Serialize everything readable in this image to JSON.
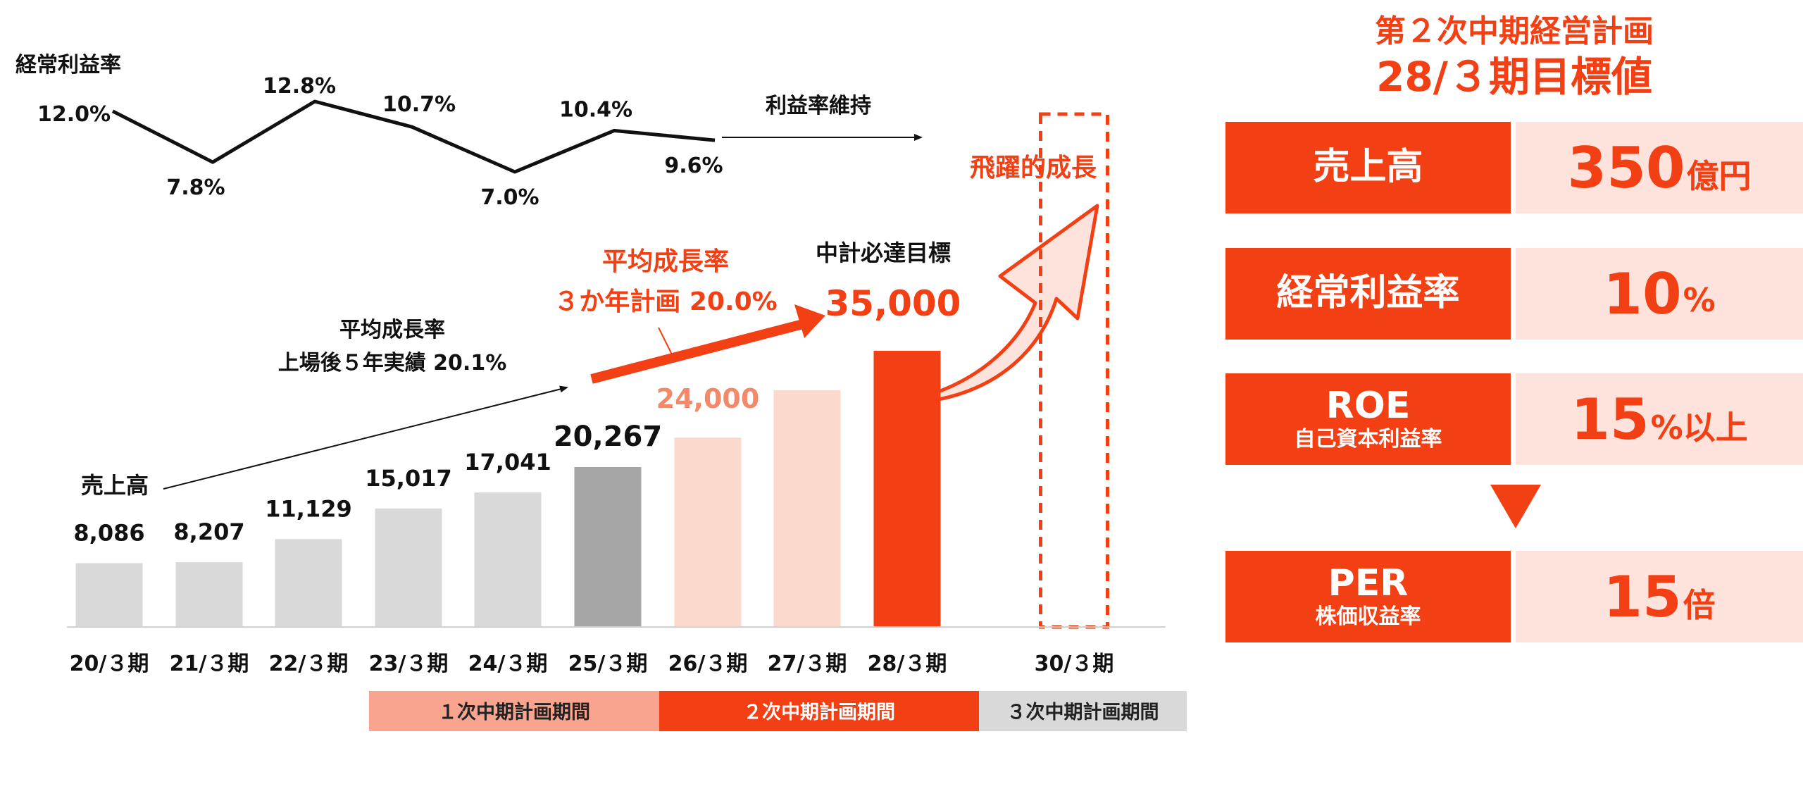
{
  "chart_data": {
    "type": "bar",
    "categories": [
      "20/３期",
      "21/３期",
      "22/３期",
      "23/３期",
      "24/３期",
      "25/３期",
      "26/３期",
      "27/３期",
      "28/３期",
      "30/３期"
    ],
    "series": [
      {
        "name": "売上高",
        "values": [
          8086,
          8207,
          11129,
          15017,
          17041,
          20267,
          24000,
          30000,
          35000,
          null
        ]
      }
    ],
    "value_labels": [
      "8,086",
      "8,207",
      "11,129",
      "15,017",
      "17,041",
      "20,267",
      "24,000",
      "",
      "35,000",
      ""
    ],
    "bar_colors": [
      "#d9d9d9",
      "#d9d9d9",
      "#d9d9d9",
      "#d9d9d9",
      "#d9d9d9",
      "#a6a6a6",
      "#fbd9cc",
      "#fbd9cc",
      "#f23f14",
      null
    ],
    "ylim": [
      0,
      40000
    ],
    "sales_label": "売上高",
    "line": {
      "label": "経常利益率",
      "categories": [
        "20/３期",
        "21/３期",
        "22/３期",
        "23/３期",
        "24/３期",
        "25/３期",
        "26/３期"
      ],
      "values": [
        12.0,
        7.8,
        12.8,
        10.7,
        7.0,
        10.4,
        9.6
      ],
      "labels": [
        "12.0%",
        "7.8%",
        "12.8%",
        "10.7%",
        "7.0%",
        "10.4%",
        "9.6%"
      ],
      "ylim": [
        6.5,
        13.5
      ],
      "continuation": "利益率維持"
    },
    "annotations": {
      "avg_growth_actual_line1": "平均成長率",
      "avg_growth_actual_line2": "上場後５年実績 20.1%",
      "avg_growth_plan_line1": "平均成長率",
      "avg_growth_plan_line2": "３か年計画  20.0%",
      "target_caption": "中計必達目標",
      "leap": "飛躍的成長"
    },
    "periods": [
      {
        "label": "１次中期計画期間",
        "color": "#f9a48f",
        "text_color": "#222222"
      },
      {
        "label": "２次中期計画期間",
        "color": "#f23f14",
        "text_color": "#ffffff"
      },
      {
        "label": "３次中期計画期間",
        "color": "#d9d9d9",
        "text_color": "#222222"
      }
    ],
    "colors": {
      "accent": "#f23f14",
      "light": "#fde3dc",
      "text": "#111111"
    }
  },
  "panel": {
    "title_line1": "第２次中期経営計画",
    "title_line2": "28/３期目標値",
    "kpis": [
      {
        "label": "売上高",
        "sub": "",
        "value": "350",
        "unit": "億円"
      },
      {
        "label": "経常利益率",
        "sub": "",
        "value": "10",
        "unit": "%"
      },
      {
        "label": "ROE",
        "sub": "自己資本利益率",
        "value": "15",
        "unit": "%以上"
      },
      {
        "label": "PER",
        "sub": "株価収益率",
        "value": "15",
        "unit": "倍"
      }
    ]
  }
}
